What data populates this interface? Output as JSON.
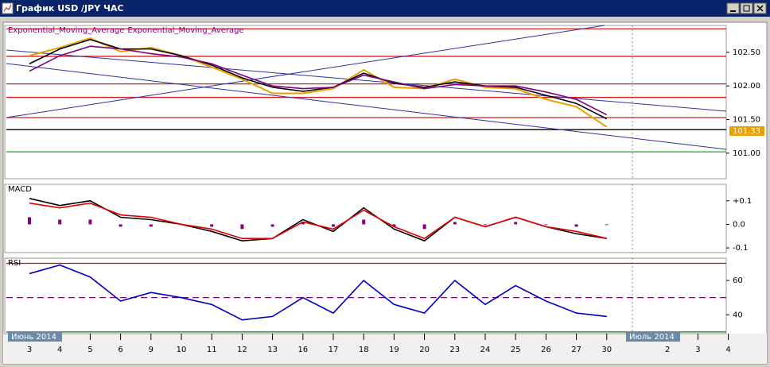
{
  "window": {
    "title": "График USD /JPY ЧАС"
  },
  "x_axis": {
    "categories": [
      "3",
      "4",
      "5",
      "6",
      "9",
      "10",
      "11",
      "12",
      "13",
      "16",
      "17",
      "18",
      "19",
      "20",
      "23",
      "24",
      "25",
      "26",
      "27",
      "30",
      null,
      "2",
      "3",
      "4"
    ],
    "month_labels": [
      "Июнь 2014",
      "Июль 2014"
    ]
  },
  "chart_data": [
    {
      "type": "line",
      "ylim": [
        100.62,
        102.9
      ],
      "yticks": [
        {
          "value": 101,
          "label": "101.00"
        },
        {
          "value": 101.5,
          "label": "101.50"
        },
        {
          "value": 102,
          "label": "102.00"
        },
        {
          "value": 102.5,
          "label": "102.50"
        }
      ],
      "hlines": [
        {
          "value": 102.85,
          "color": "#d02020"
        },
        {
          "value": 102.44,
          "color": "#d02020"
        },
        {
          "value": 102.03,
          "color": "#d02020"
        },
        {
          "value": 101.83,
          "color": "#d02020"
        },
        {
          "value": 101.53,
          "color": "#d02020"
        },
        {
          "value": 101.35,
          "color": "#000000"
        },
        {
          "value": 101.02,
          "color": "#20a020"
        }
      ],
      "last_price": 101.33,
      "series": [
        {
          "color": "#e8a000",
          "values": [
            102.45,
            102.57,
            102.71,
            102.51,
            102.57,
            102.45,
            102.28,
            102.1,
            101.89,
            101.89,
            101.96,
            102.24,
            101.98,
            101.96,
            102.1,
            101.98,
            101.96,
            101.8,
            101.69,
            101.39,
            null,
            null,
            null,
            null
          ]
        },
        {
          "name": "Exponential_Moving_Average",
          "color": "#000000",
          "values": [
            102.33,
            102.55,
            102.69,
            102.55,
            102.55,
            102.45,
            102.31,
            102.12,
            101.98,
            101.92,
            101.98,
            102.19,
            102.04,
            101.98,
            102.06,
            102.0,
            101.98,
            101.86,
            101.74,
            101.51,
            null,
            null,
            null,
            null
          ]
        },
        {
          "name": "Exponential_Moving_Average",
          "color": "#800080",
          "values": [
            102.22,
            102.45,
            102.59,
            102.55,
            102.48,
            102.43,
            102.33,
            102.16,
            102.0,
            101.96,
            101.98,
            102.16,
            102.06,
            101.96,
            102.02,
            102.0,
            102.0,
            101.91,
            101.8,
            101.57,
            null,
            null,
            null,
            null
          ]
        }
      ]
    },
    {
      "type": "line",
      "title": "MACD",
      "ylim": [
        -0.12,
        0.17
      ],
      "yticks": [
        {
          "value": -0.1,
          "label": "-0.1"
        },
        {
          "value": 0,
          "label": "0.0"
        },
        {
          "value": 0.1,
          "label": "+0.1"
        }
      ],
      "series": [
        {
          "style": "histogram",
          "color": "#800080",
          "values": [
            0.03,
            0.02,
            0.02,
            -0.01,
            -0.01,
            0,
            -0.01,
            -0.02,
            -0.01,
            0.01,
            -0.01,
            0.02,
            -0.01,
            -0.02,
            0.01,
            0,
            0.01,
            0,
            -0.01,
            0,
            null,
            null,
            null,
            null
          ]
        },
        {
          "color": "#000000",
          "values": [
            0.11,
            0.08,
            0.1,
            0.03,
            0.02,
            0,
            -0.03,
            -0.07,
            -0.06,
            0.02,
            -0.03,
            0.07,
            -0.02,
            -0.07,
            0.03,
            -0.01,
            0.03,
            -0.01,
            -0.04,
            -0.06,
            null,
            null,
            null,
            null
          ]
        },
        {
          "color": "#e00000",
          "values": [
            0.09,
            0.07,
            0.09,
            0.04,
            0.03,
            0,
            -0.02,
            -0.06,
            -0.06,
            0.01,
            -0.02,
            0.06,
            -0.01,
            -0.06,
            0.03,
            -0.01,
            0.03,
            -0.01,
            -0.03,
            -0.06,
            null,
            null,
            null,
            null
          ]
        }
      ]
    },
    {
      "type": "line",
      "title": "RSI",
      "ylim": [
        29,
        73
      ],
      "yticks": [
        40,
        60
      ],
      "hlines": [
        {
          "value": 70,
          "color": "#e00000"
        },
        {
          "value": 50,
          "color": "#800080",
          "dashed": true
        },
        {
          "value": 30,
          "color": "#008000"
        }
      ],
      "series": [
        {
          "color": "#0000c0",
          "values": [
            64,
            69,
            62,
            48,
            53,
            50,
            46,
            37,
            39,
            50,
            41,
            60,
            46,
            41,
            60,
            46,
            57,
            48,
            41,
            39,
            null,
            null,
            null,
            null
          ]
        }
      ]
    }
  ]
}
